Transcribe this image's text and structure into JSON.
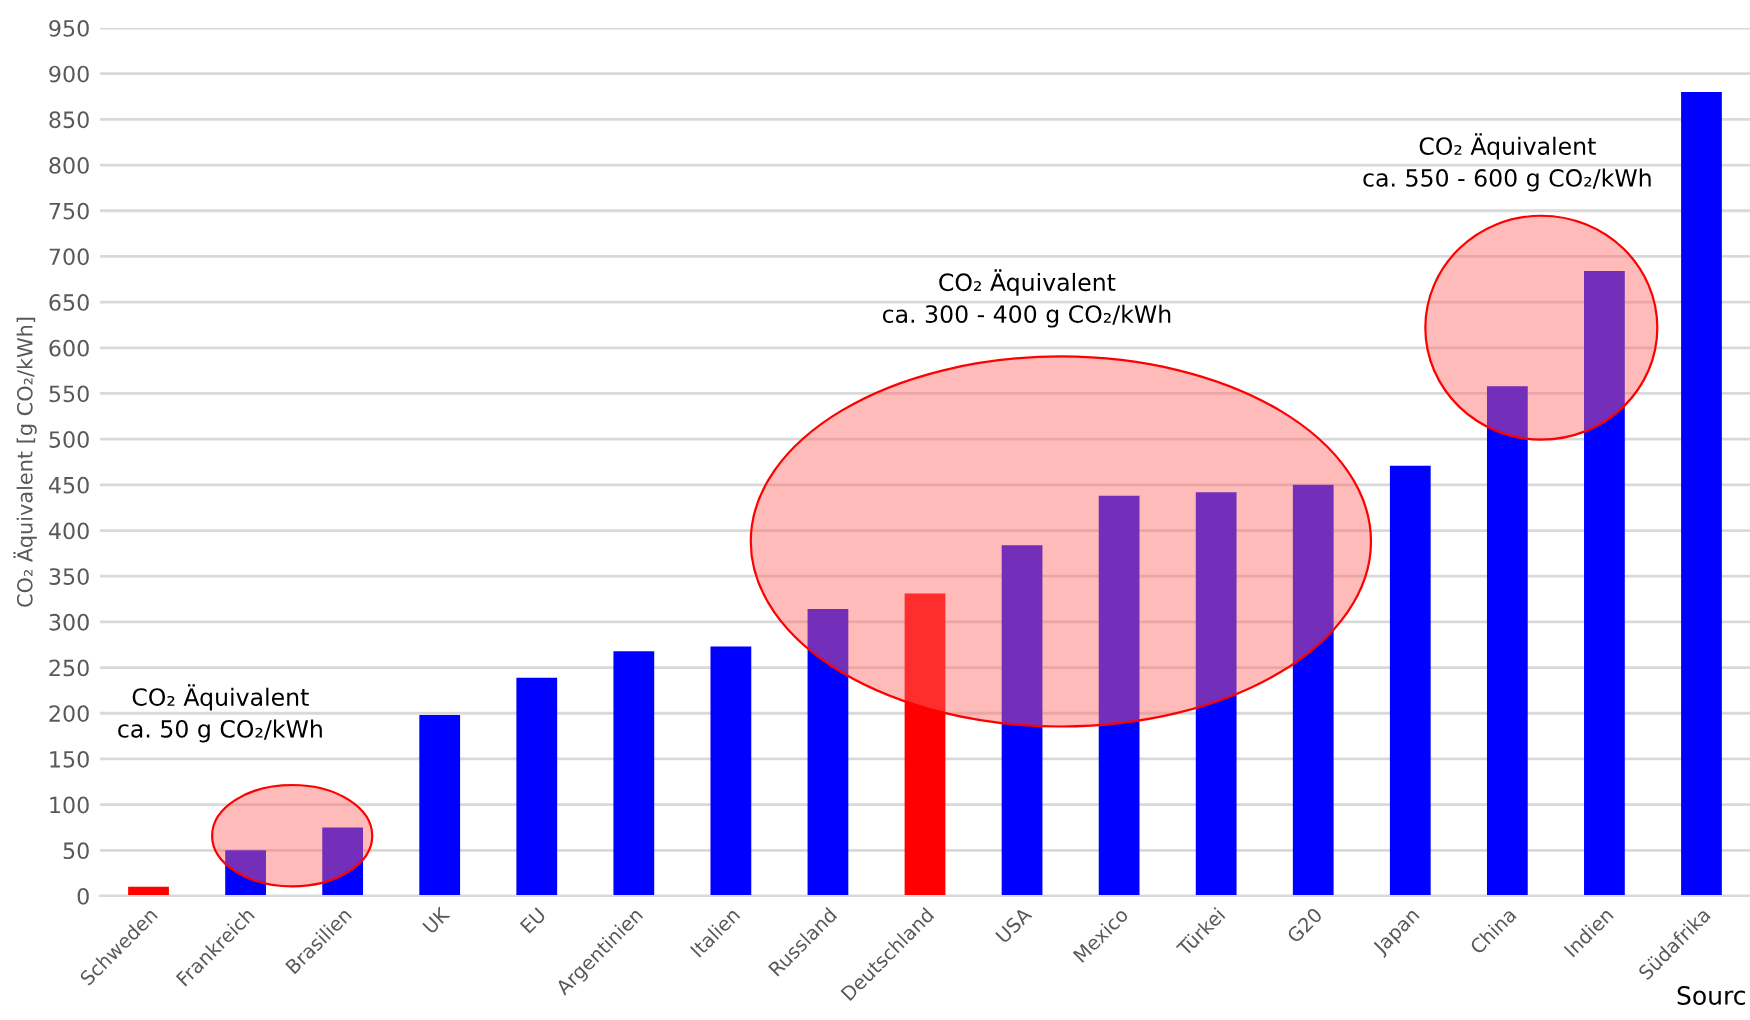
{
  "chart_data": {
    "type": "bar",
    "ylabel": "CO₂ Äquivalent [g CO₂/kWh]",
    "categories": [
      "Schweden",
      "Frankreich",
      "Brasilien",
      "UK",
      "EU",
      "Argentinien",
      "Italien",
      "Russland",
      "Deutschland",
      "USA",
      "Mexico",
      "Türkei",
      "G20",
      "Japan",
      "China",
      "Indien",
      "Südafrika"
    ],
    "values": [
      10,
      50,
      75,
      198,
      239,
      268,
      273,
      314,
      331,
      384,
      438,
      442,
      450,
      471,
      558,
      684,
      880
    ],
    "colors": [
      "#ff0000",
      "#0000ff",
      "#0000ff",
      "#0000ff",
      "#0000ff",
      "#0000ff",
      "#0000ff",
      "#0000ff",
      "#ff0000",
      "#0000ff",
      "#0000ff",
      "#0000ff",
      "#0000ff",
      "#0000ff",
      "#0000ff",
      "#0000ff",
      "#0000ff"
    ],
    "ylim": [
      0,
      950
    ],
    "yticks": [
      0,
      50,
      100,
      150,
      200,
      250,
      300,
      350,
      400,
      450,
      500,
      550,
      600,
      650,
      700,
      750,
      800,
      850,
      900,
      950
    ],
    "grid": "y",
    "annotations": [
      "CO₂ Äquivalent\nca. 50 g CO₂/kWh",
      "CO₂ Äquivalent\nca. 300 - 400 g CO₂/kWh",
      "CO₂ Äquivalent\nca. 550 - 600 g CO₂/kWh",
      "Sourc"
    ]
  }
}
